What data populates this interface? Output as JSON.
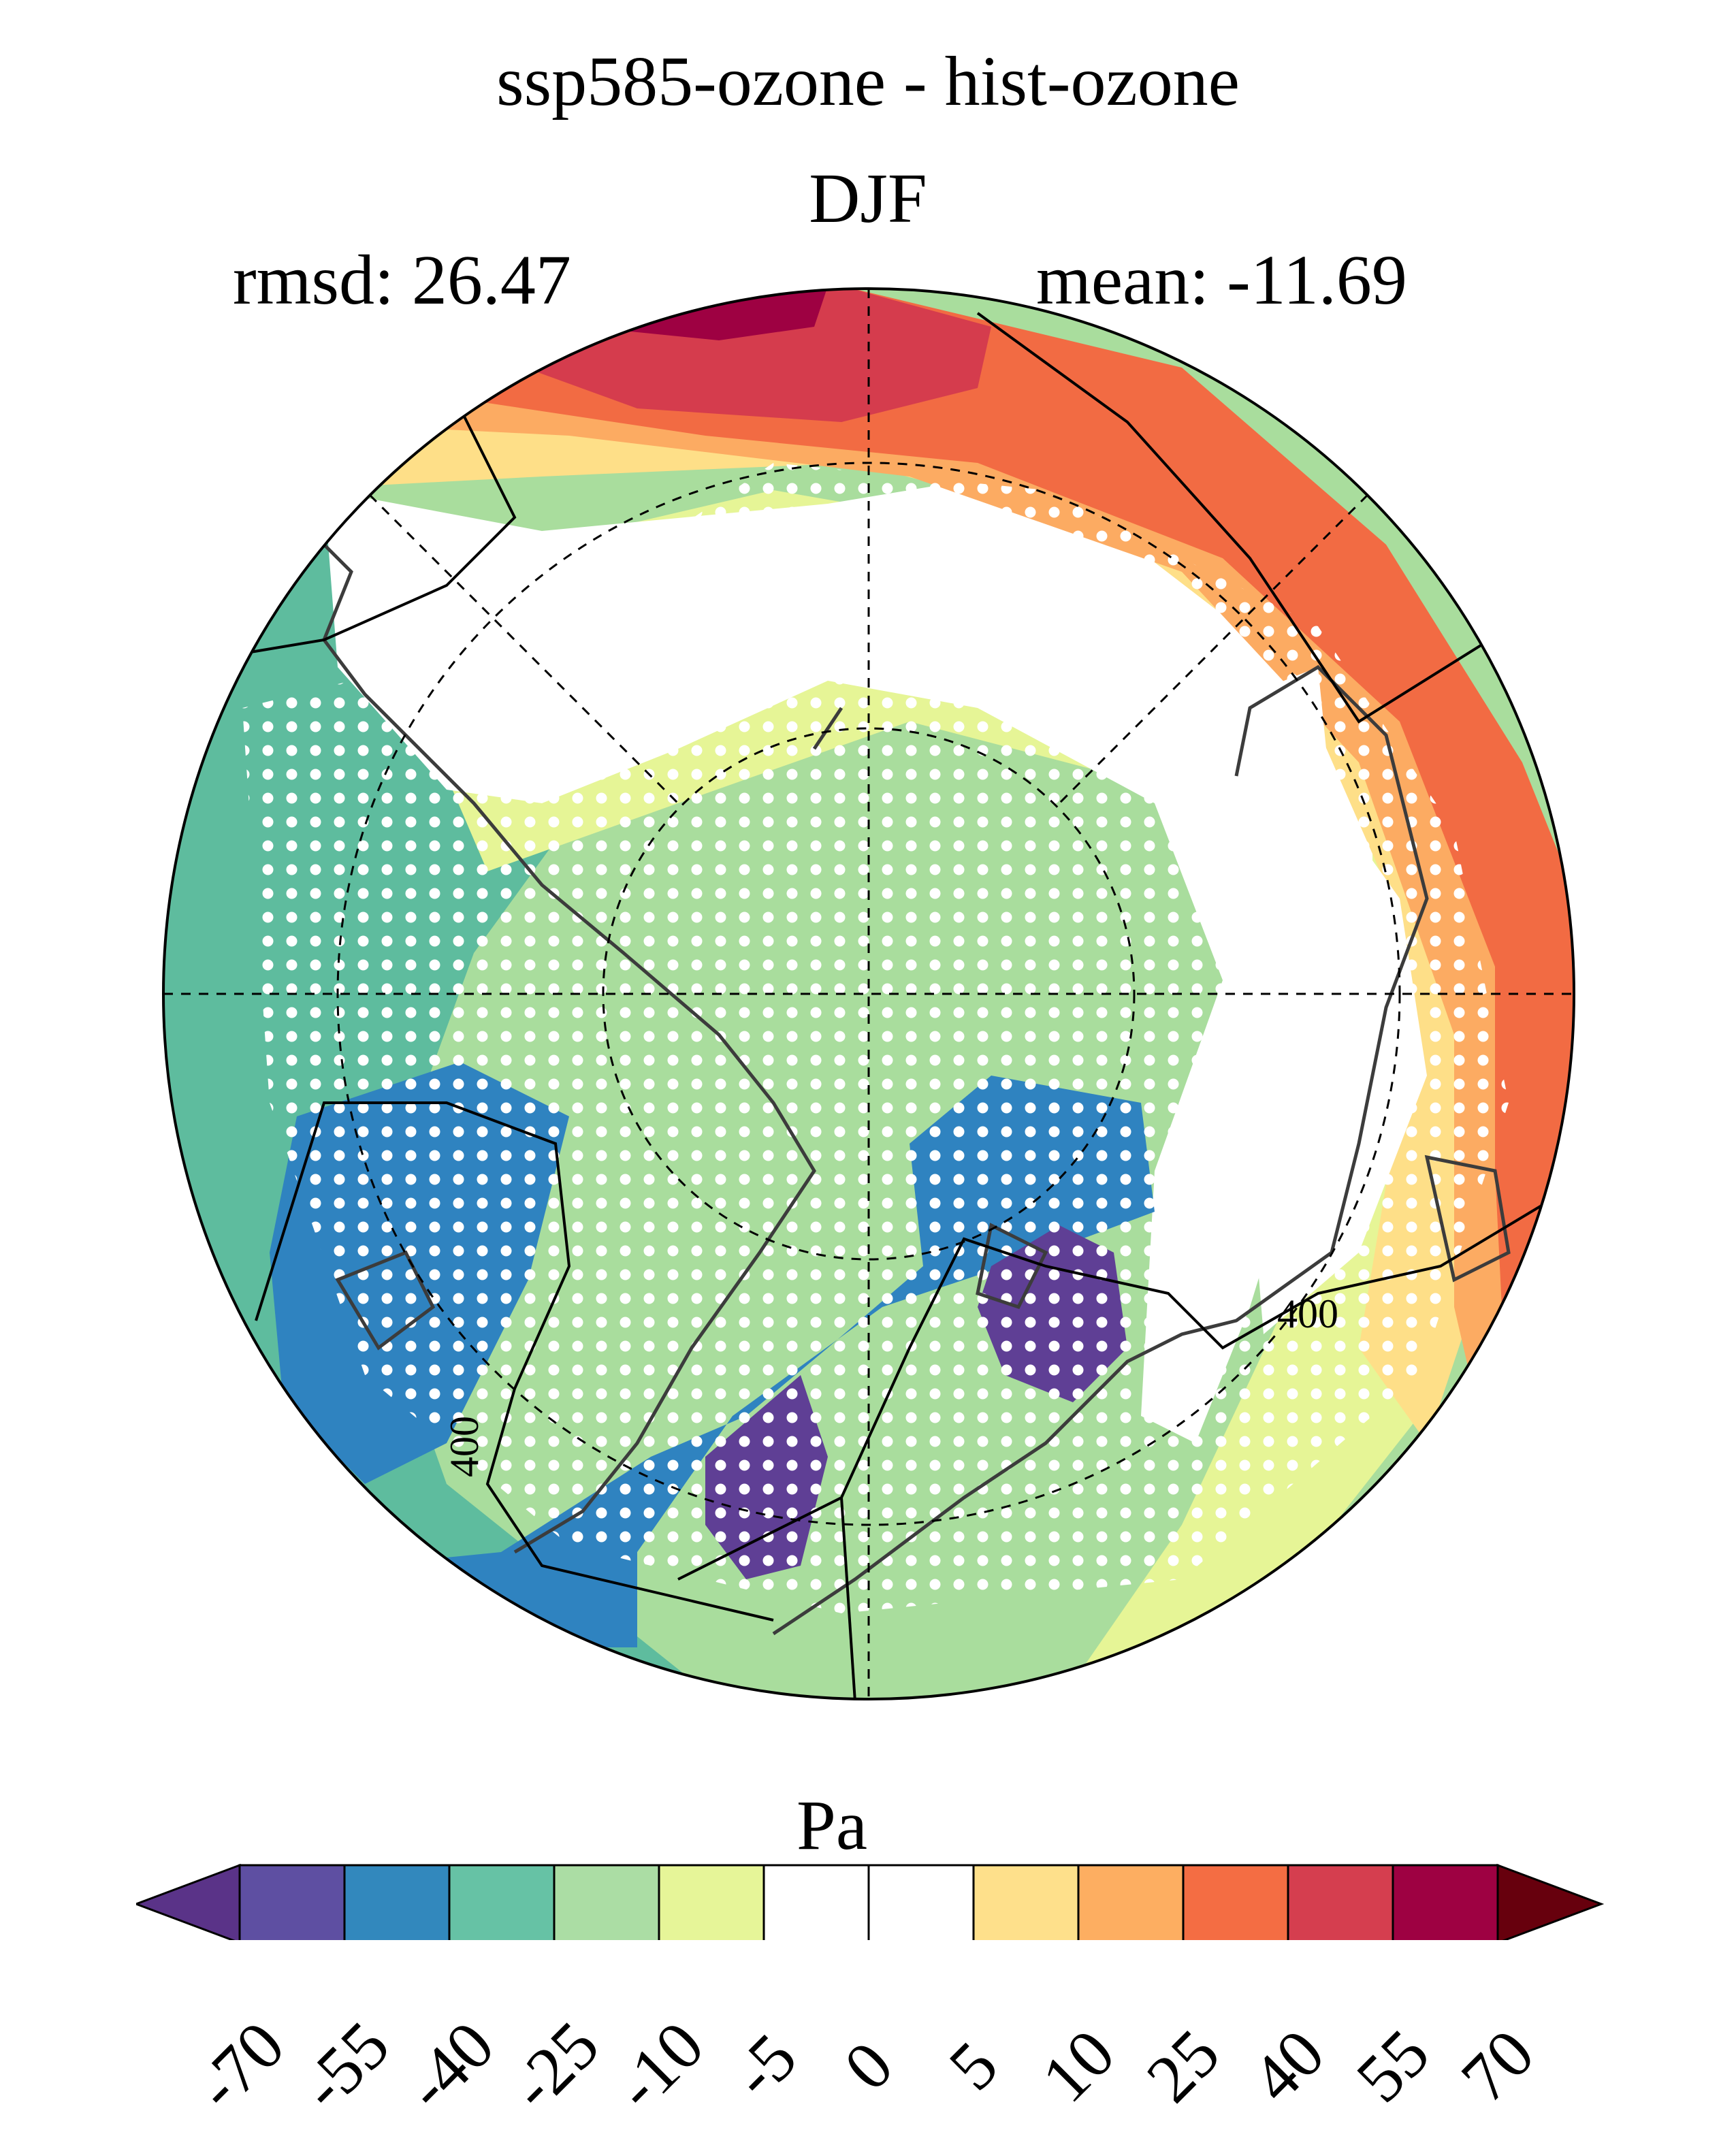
{
  "title": "ssp585-ozone - hist-ozone",
  "season": "DJF",
  "stats": {
    "rmsd": "rmsd: 26.47",
    "mean": "mean: -11.69"
  },
  "map": {
    "projection": "north-polar-stereographic",
    "contour_labels": [
      "400",
      "400"
    ],
    "stippling": "white-dots",
    "colors": {
      "c_m70": "#5f3f95",
      "c_m55": "#2f83c0",
      "c_m40": "#5ebc9e",
      "c_m25": "#a9dd9d",
      "c_m10": "#e6f596",
      "c_0": "#ffffff",
      "c_10": "#fedf88",
      "c_25": "#fcab62",
      "c_40": "#f26b43",
      "c_55": "#d53c4d",
      "c_70": "#9e0142"
    }
  },
  "colorbar": {
    "units": "Pa",
    "tick_labels": [
      "-70",
      "-55",
      "-40",
      "-25",
      "-10",
      "-5",
      "0",
      "5",
      "10",
      "25",
      "40",
      "55",
      "70"
    ],
    "segment_colors": [
      "#5e4fa2",
      "#3288bd",
      "#66c2a5",
      "#abdda4",
      "#e6f598",
      "#ffffff",
      "#ffffff",
      "#fee08b",
      "#fdae61",
      "#f46d43",
      "#d53e4f",
      "#9e0142"
    ],
    "under_color": "#5a3388",
    "over_color": "#67000d"
  }
}
